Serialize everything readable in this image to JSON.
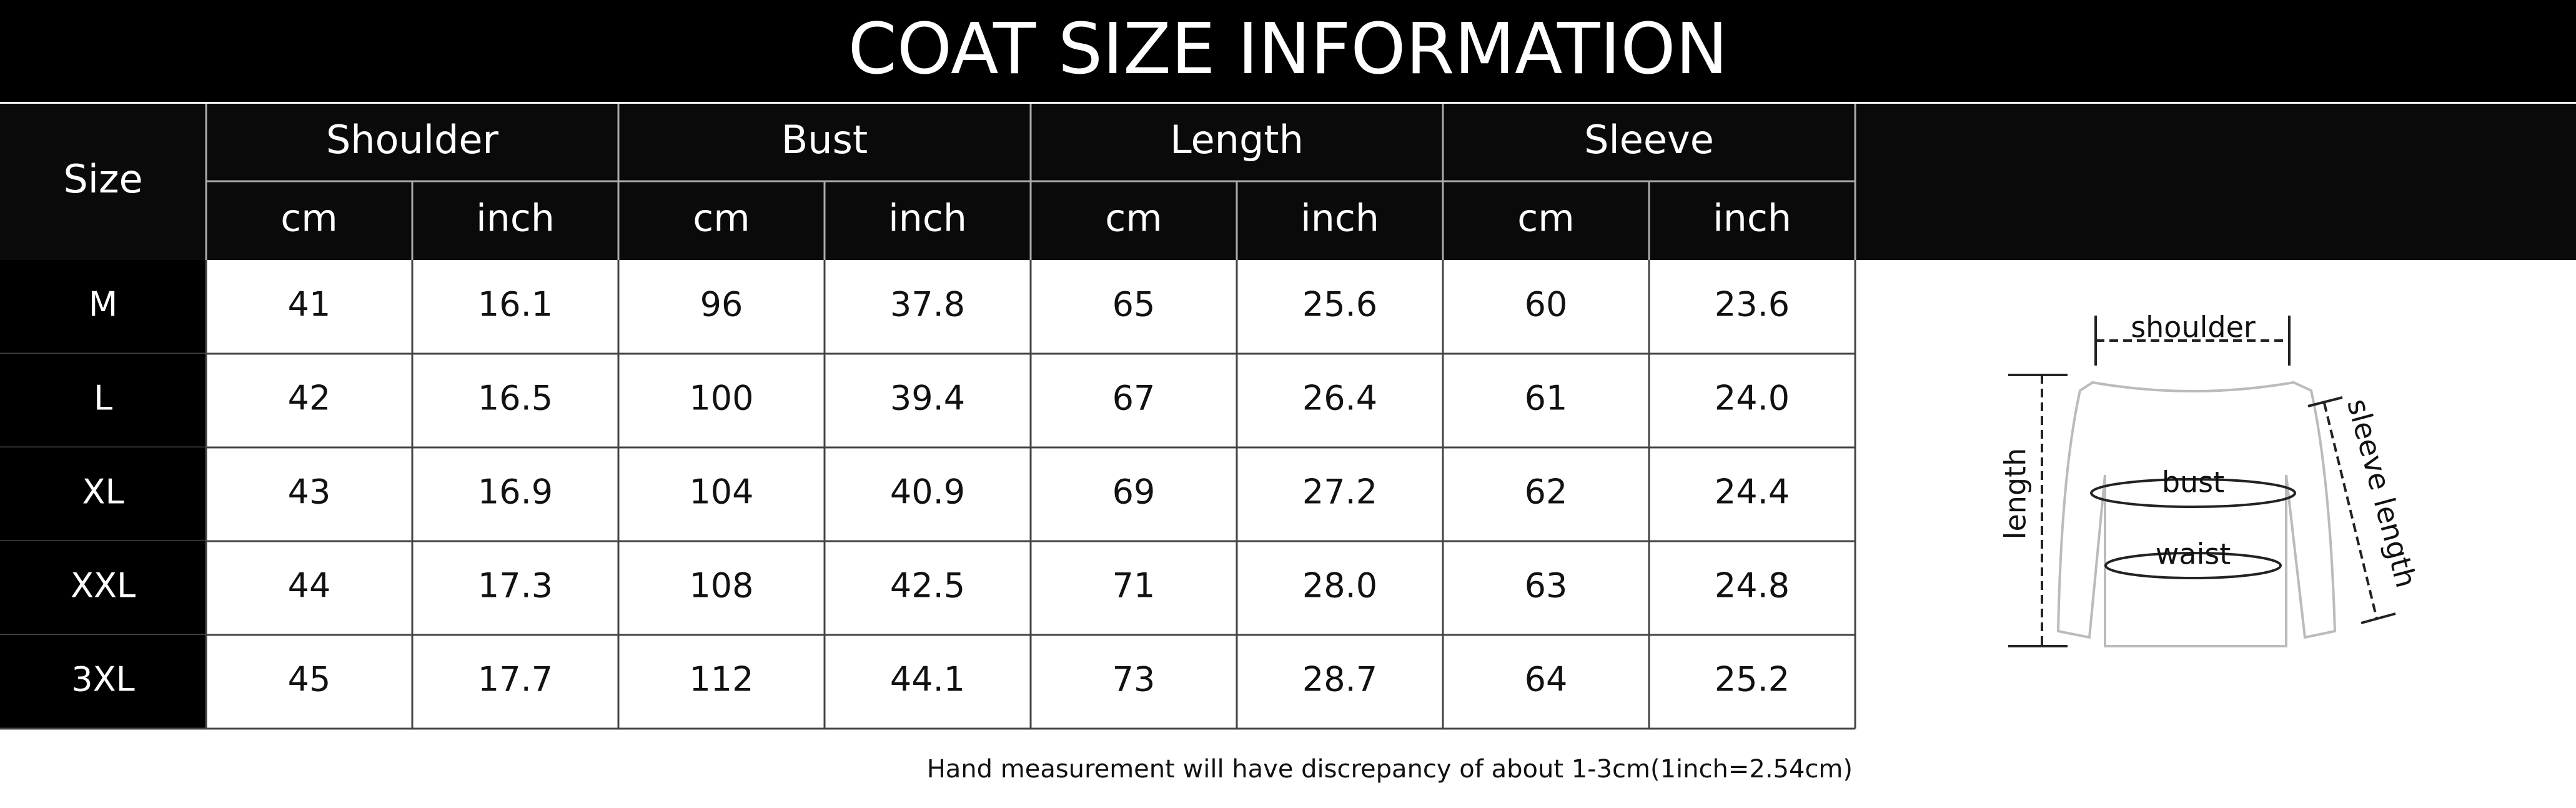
{
  "header": {
    "title": "COAT SIZE INFORMATION"
  },
  "table": {
    "size_label": "Size",
    "groups": [
      "Shoulder",
      "Bust",
      "Length",
      "Sleeve"
    ],
    "units": [
      "cm",
      "inch",
      "cm",
      "inch",
      "cm",
      "inch",
      "cm",
      "inch"
    ],
    "rows": [
      [
        "M",
        "41",
        "16.1",
        "96",
        "37.8",
        "65",
        "25.6",
        "60",
        "23.6"
      ],
      [
        "L",
        "42",
        "16.5",
        "100",
        "39.4",
        "67",
        "26.4",
        "61",
        "24.0"
      ],
      [
        "XL",
        "43",
        "16.9",
        "104",
        "40.9",
        "69",
        "27.2",
        "62",
        "24.4"
      ],
      [
        "XXL",
        "44",
        "17.3",
        "108",
        "42.5",
        "71",
        "28.0",
        "63",
        "24.8"
      ],
      [
        "3XL",
        "45",
        "17.7",
        "112",
        "44.1",
        "73",
        "28.7",
        "64",
        "25.2"
      ]
    ]
  },
  "note": "Hand measurement will have discrepancy of about 1-3cm(1inch=2.54cm)",
  "diagram": {
    "labels": [
      "shoulder",
      "bust",
      "waist",
      "length",
      "sleeve length"
    ]
  }
}
